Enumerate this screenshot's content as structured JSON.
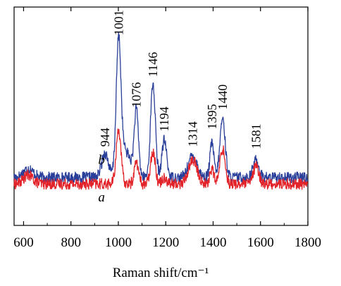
{
  "chart_data": {
    "type": "line",
    "xlabel": "Raman shift/cm⁻¹",
    "ylabel": "",
    "title": "",
    "xlim": [
      560,
      1800
    ],
    "ylim": [
      0,
      1
    ],
    "x_ticks": [
      "600",
      "800",
      "1000",
      "1200",
      "1400",
      "1600",
      "1800"
    ],
    "y_ticks": [],
    "grid": false,
    "series": [
      {
        "name": "b",
        "color": "#2a3f9a",
        "baseline": 0.22,
        "peaks": [
          {
            "x": 620,
            "h": 0.04,
            "w": 20
          },
          {
            "x": 944,
            "h": 0.11,
            "w": 14
          },
          {
            "x": 1001,
            "h": 0.6,
            "w": 10
          },
          {
            "x": 1030,
            "h": 0.12,
            "w": 22
          },
          {
            "x": 1076,
            "h": 0.3,
            "w": 9
          },
          {
            "x": 1146,
            "h": 0.43,
            "w": 10
          },
          {
            "x": 1194,
            "h": 0.17,
            "w": 10
          },
          {
            "x": 1314,
            "h": 0.1,
            "w": 18
          },
          {
            "x": 1395,
            "h": 0.16,
            "w": 8
          },
          {
            "x": 1440,
            "h": 0.27,
            "w": 11
          },
          {
            "x": 1581,
            "h": 0.08,
            "w": 12
          }
        ]
      },
      {
        "name": "a",
        "color": "#e2242a",
        "baseline": 0.19,
        "peaks": [
          {
            "x": 620,
            "h": 0.04,
            "w": 20
          },
          {
            "x": 1001,
            "h": 0.25,
            "w": 10
          },
          {
            "x": 1076,
            "h": 0.1,
            "w": 9
          },
          {
            "x": 1146,
            "h": 0.15,
            "w": 10
          },
          {
            "x": 1194,
            "h": 0.03,
            "w": 10
          },
          {
            "x": 1314,
            "h": 0.11,
            "w": 18
          },
          {
            "x": 1395,
            "h": 0.07,
            "w": 8
          },
          {
            "x": 1440,
            "h": 0.16,
            "w": 11
          },
          {
            "x": 1581,
            "h": 0.08,
            "w": 12
          }
        ]
      }
    ],
    "peak_labels": [
      {
        "text": "944",
        "x": 944,
        "y": 0.36
      },
      {
        "text": "1001",
        "x": 1001,
        "y": 0.87
      },
      {
        "text": "1076",
        "x": 1076,
        "y": 0.54
      },
      {
        "text": "1146",
        "x": 1146,
        "y": 0.68
      },
      {
        "text": "1194",
        "x": 1194,
        "y": 0.43
      },
      {
        "text": "1314",
        "x": 1314,
        "y": 0.36
      },
      {
        "text": "1395",
        "x": 1395,
        "y": 0.44
      },
      {
        "text": "1440",
        "x": 1440,
        "y": 0.53
      },
      {
        "text": "1581",
        "x": 1581,
        "y": 0.35
      }
    ],
    "curve_labels": [
      {
        "text": "b",
        "x": 915,
        "y": 0.28
      },
      {
        "text": "a",
        "x": 915,
        "y": 0.11
      }
    ]
  }
}
